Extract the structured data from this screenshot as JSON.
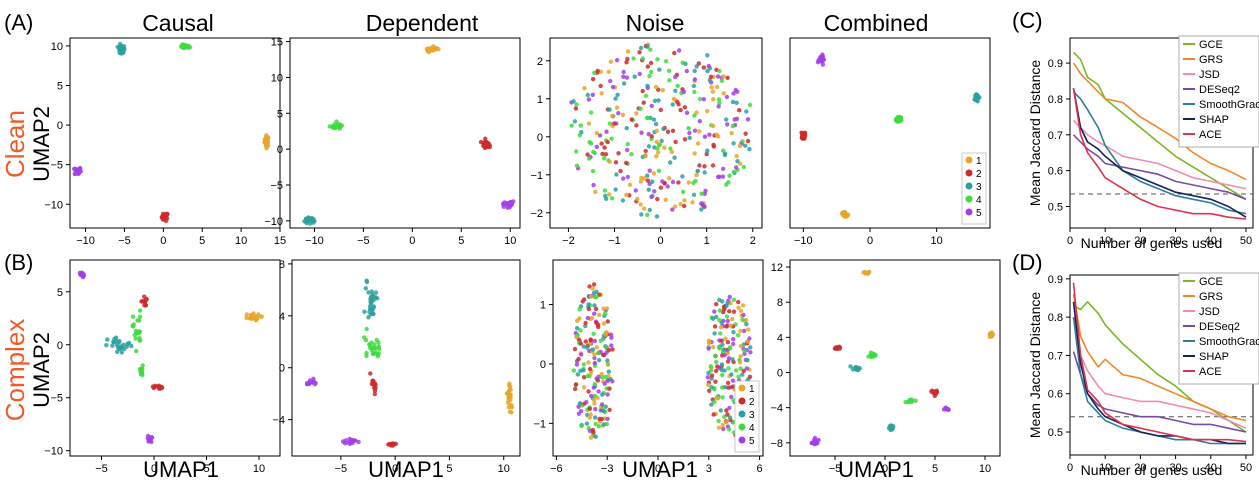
{
  "figure": {
    "panel_labels": [
      "(A)",
      "(B)",
      "(C)",
      "(D)"
    ],
    "column_titles": [
      "Causal",
      "Dependent",
      "Noise",
      "Combined"
    ],
    "row_labels": [
      {
        "name": "Clean",
        "ylabel": "UMAP2",
        "color": "#f05a28"
      },
      {
        "name": "Complex",
        "ylabel": "UMAP2",
        "color": "#f05a28"
      }
    ],
    "xlabel": "UMAP1"
  },
  "cluster_colors": {
    "1": "#e9a52a",
    "2": "#cc2a2a",
    "3": "#2aa0a0",
    "4": "#3ddc3d",
    "5": "#a53ee8"
  },
  "chart_data": [
    {
      "id": "A-causal",
      "type": "scatter",
      "panel": "A",
      "title": "Causal",
      "xlim": [
        -12,
        15
      ],
      "ylim": [
        -13,
        11
      ],
      "xticks": [
        -10,
        -5,
        0,
        5,
        10,
        15
      ],
      "yticks": [
        -10,
        -5,
        0,
        5,
        10
      ],
      "legend": null,
      "clusters": [
        {
          "label": "1",
          "center": [
            13.3,
            -2.0
          ],
          "spread": [
            0.3,
            0.7
          ],
          "n": 26
        },
        {
          "label": "2",
          "center": [
            0.2,
            -11.6
          ],
          "spread": [
            0.4,
            0.5
          ],
          "n": 26
        },
        {
          "label": "3",
          "center": [
            -5.4,
            9.5
          ],
          "spread": [
            0.45,
            0.6
          ],
          "n": 26
        },
        {
          "label": "4",
          "center": [
            2.8,
            9.9
          ],
          "spread": [
            0.6,
            0.25
          ],
          "n": 26
        },
        {
          "label": "5",
          "center": [
            -11.0,
            -5.8
          ],
          "spread": [
            0.4,
            0.5
          ],
          "n": 26
        }
      ]
    },
    {
      "id": "A-dependent",
      "type": "scatter",
      "panel": "A",
      "title": "Dependent",
      "xlim": [
        -12.5,
        11
      ],
      "ylim": [
        -11,
        15.5
      ],
      "xticks": [
        -10,
        -5,
        0,
        5,
        10
      ],
      "yticks": [
        -10,
        -5,
        0,
        5,
        10,
        15
      ],
      "legend": null,
      "clusters": [
        {
          "label": "1",
          "center": [
            2.0,
            13.9
          ],
          "spread": [
            0.5,
            0.3
          ],
          "n": 26
        },
        {
          "label": "2",
          "center": [
            7.5,
            0.7
          ],
          "spread": [
            0.4,
            0.4
          ],
          "n": 26
        },
        {
          "label": "3",
          "center": [
            -10.5,
            -9.9
          ],
          "spread": [
            0.5,
            0.4
          ],
          "n": 26
        },
        {
          "label": "4",
          "center": [
            -7.8,
            3.2
          ],
          "spread": [
            0.6,
            0.4
          ],
          "n": 26
        },
        {
          "label": "5",
          "center": [
            9.8,
            -7.7
          ],
          "spread": [
            0.5,
            0.4
          ],
          "n": 26
        }
      ]
    },
    {
      "id": "A-noise",
      "type": "scatter",
      "panel": "A",
      "title": "Noise",
      "xlim": [
        -2.4,
        2.2
      ],
      "ylim": [
        -2.4,
        2.6
      ],
      "xticks": [
        -2,
        -1,
        0,
        1,
        2
      ],
      "yticks": [
        -2,
        -1,
        0,
        1,
        2
      ],
      "legend": null,
      "cloud": {
        "shape": "disc",
        "center": [
          0.0,
          0.15
        ],
        "radius": [
          2.05,
          2.3
        ],
        "n_per_cluster": 70
      }
    },
    {
      "id": "A-combined",
      "type": "scatter",
      "panel": "A",
      "title": "Combined",
      "xlim": [
        -12,
        18
      ],
      "ylim": [
        -13.5,
        10
      ],
      "xticks": [
        -10,
        0,
        10
      ],
      "yticks": [],
      "legend": {
        "entries": [
          "1",
          "2",
          "3",
          "4",
          "5"
        ],
        "position": "bottom-right"
      },
      "clusters": [
        {
          "label": "1",
          "center": [
            -3.8,
            -11.8
          ],
          "spread": [
            0.4,
            0.4
          ],
          "n": 26
        },
        {
          "label": "2",
          "center": [
            -10.0,
            -2.1
          ],
          "spread": [
            0.3,
            0.5
          ],
          "n": 26
        },
        {
          "label": "3",
          "center": [
            16.0,
            2.7
          ],
          "spread": [
            0.3,
            0.5
          ],
          "n": 26
        },
        {
          "label": "4",
          "center": [
            4.3,
            -0.1
          ],
          "spread": [
            0.4,
            0.35
          ],
          "n": 26
        },
        {
          "label": "5",
          "center": [
            -7.3,
            7.4
          ],
          "spread": [
            0.35,
            0.5
          ],
          "n": 26
        }
      ]
    },
    {
      "id": "C",
      "type": "line",
      "panel": "C",
      "xlabel": "Number of genes used",
      "ylabel": "Mean Jaccard Distance",
      "xlim": [
        0,
        52
      ],
      "ylim": [
        0.44,
        0.97
      ],
      "xticks": [
        0,
        10,
        20,
        30,
        40,
        50
      ],
      "yticks": [
        0.5,
        0.6,
        0.7,
        0.8,
        0.9
      ],
      "hline": {
        "y": 0.535,
        "style": "dashed",
        "color": "#555555"
      },
      "legend_position": "top-right",
      "x": [
        1,
        3,
        5,
        8,
        10,
        15,
        20,
        25,
        30,
        35,
        40,
        45,
        50
      ],
      "series": [
        {
          "name": "GCE",
          "color": "#7ab728",
          "values": [
            0.93,
            0.91,
            0.86,
            0.84,
            0.8,
            0.76,
            0.72,
            0.68,
            0.64,
            0.61,
            0.58,
            0.55,
            0.52
          ]
        },
        {
          "name": "GRS",
          "color": "#f0882a",
          "values": [
            0.9,
            0.87,
            0.85,
            0.82,
            0.8,
            0.79,
            0.75,
            0.72,
            0.69,
            0.65,
            0.62,
            0.6,
            0.575
          ]
        },
        {
          "name": "JSD",
          "color": "#f08cb0",
          "values": [
            0.74,
            0.72,
            0.7,
            0.68,
            0.67,
            0.64,
            0.63,
            0.62,
            0.6,
            0.58,
            0.57,
            0.56,
            0.55
          ]
        },
        {
          "name": "DESeq2",
          "color": "#7a4aa0",
          "values": [
            0.7,
            0.68,
            0.66,
            0.64,
            0.62,
            0.61,
            0.6,
            0.59,
            0.57,
            0.56,
            0.55,
            0.54,
            0.52
          ]
        },
        {
          "name": "SmoothGrad",
          "color": "#2f7d9a",
          "values": [
            0.82,
            0.8,
            0.77,
            0.72,
            0.67,
            0.6,
            0.57,
            0.55,
            0.53,
            0.52,
            0.51,
            0.49,
            0.48
          ]
        },
        {
          "name": "SHAP",
          "color": "#16225a",
          "values": [
            0.83,
            0.72,
            0.68,
            0.66,
            0.64,
            0.6,
            0.58,
            0.56,
            0.54,
            0.53,
            0.52,
            0.5,
            0.47
          ]
        },
        {
          "name": "ACE",
          "color": "#e0334a",
          "values": [
            0.83,
            0.7,
            0.65,
            0.61,
            0.58,
            0.55,
            0.52,
            0.5,
            0.49,
            0.48,
            0.48,
            0.47,
            0.465
          ]
        }
      ]
    },
    {
      "id": "B-causal",
      "type": "scatter",
      "panel": "B",
      "xlabel": "UMAP1",
      "ylabel": "UMAP2",
      "xlim": [
        -8,
        12
      ],
      "ylim": [
        -10.5,
        8
      ],
      "xticks": [
        -5,
        0,
        5,
        10
      ],
      "yticks": [
        -10,
        -5,
        0,
        5
      ],
      "legend": null,
      "clusters": [
        {
          "label": "1",
          "center": [
            9.2,
            2.6
          ],
          "spread": [
            0.9,
            0.3
          ],
          "n": 20
        },
        {
          "label": "5",
          "center": [
            -6.9,
            6.6
          ],
          "spread": [
            0.25,
            0.25
          ],
          "n": 14
        },
        {
          "label": "5",
          "center": [
            -0.4,
            -8.9
          ],
          "spread": [
            0.2,
            0.3
          ],
          "n": 14
        },
        {
          "label": "2",
          "center": [
            -0.9,
            4.1
          ],
          "spread": [
            0.3,
            0.5
          ],
          "n": 12
        },
        {
          "label": "2",
          "center": [
            0.3,
            -4.0
          ],
          "spread": [
            0.5,
            0.2
          ],
          "n": 12
        },
        {
          "label": "4",
          "center": [
            -1.6,
            1.4
          ],
          "spread": [
            0.4,
            1.8
          ],
          "n": 22
        },
        {
          "label": "4",
          "center": [
            -1.2,
            -2.6
          ],
          "spread": [
            0.3,
            0.6
          ],
          "n": 12
        },
        {
          "label": "3",
          "center": [
            -3.2,
            -0.1
          ],
          "spread": [
            1.2,
            0.8
          ],
          "n": 24
        }
      ]
    },
    {
      "id": "B-dependent",
      "type": "scatter",
      "panel": "B",
      "xlabel": "UMAP1",
      "xlim": [
        -9.5,
        11.5
      ],
      "ylim": [
        -6.8,
        8.3
      ],
      "xticks": [
        -5,
        0,
        5,
        10
      ],
      "yticks": [
        -4,
        0,
        4,
        8
      ],
      "legend": null,
      "clusters": [
        {
          "label": "3",
          "center": [
            -2.2,
            5.2
          ],
          "spread": [
            0.5,
            1.6
          ],
          "n": 30
        },
        {
          "label": "4",
          "center": [
            -2.0,
            1.4
          ],
          "spread": [
            0.8,
            0.9
          ],
          "n": 26
        },
        {
          "label": "2",
          "center": [
            -2.0,
            -1.3
          ],
          "spread": [
            0.25,
            0.8
          ],
          "n": 14
        },
        {
          "label": "5",
          "center": [
            -7.8,
            -1.1
          ],
          "spread": [
            0.5,
            0.2
          ],
          "n": 12
        },
        {
          "label": "5",
          "center": [
            -4.2,
            -5.7
          ],
          "spread": [
            0.7,
            0.3
          ],
          "n": 14
        },
        {
          "label": "2",
          "center": [
            -0.3,
            -5.9
          ],
          "spread": [
            0.4,
            0.15
          ],
          "n": 12
        },
        {
          "label": "1",
          "center": [
            10.5,
            -2.2
          ],
          "spread": [
            0.25,
            1.2
          ],
          "n": 24
        }
      ]
    },
    {
      "id": "B-noise",
      "type": "scatter",
      "panel": "B",
      "xlabel": "UMAP1",
      "xlim": [
        -6.2,
        6.2
      ],
      "ylim": [
        -1.55,
        1.75
      ],
      "xticks": [
        -6,
        -3,
        0,
        3,
        6
      ],
      "yticks": [
        -1,
        0,
        1
      ],
      "legend": {
        "entries": [
          "1",
          "2",
          "3",
          "4",
          "5"
        ],
        "position": "bottom-right"
      },
      "blobs": [
        {
          "center": [
            -3.8,
            0.0
          ],
          "radius": [
            1.5,
            1.35
          ],
          "n_per_cluster": 40
        },
        {
          "center": [
            4.2,
            0.0
          ],
          "radius": [
            1.6,
            1.3
          ],
          "n_per_cluster": 40
        }
      ]
    },
    {
      "id": "B-combined",
      "type": "scatter",
      "panel": "B",
      "xlabel": "UMAP1",
      "xlim": [
        -9.5,
        11.5
      ],
      "ylim": [
        -9.5,
        12.8
      ],
      "xticks": [
        -5,
        0,
        5,
        10
      ],
      "yticks": [
        -8,
        -4,
        0,
        4,
        8,
        12
      ],
      "legend": null,
      "clusters": [
        {
          "label": "1",
          "center": [
            -1.8,
            11.3
          ],
          "spread": [
            0.3,
            0.15
          ],
          "n": 12
        },
        {
          "label": "1",
          "center": [
            10.6,
            4.3
          ],
          "spread": [
            0.2,
            0.3
          ],
          "n": 12
        },
        {
          "label": "2",
          "center": [
            -4.8,
            2.8
          ],
          "spread": [
            0.4,
            0.15
          ],
          "n": 12
        },
        {
          "label": "2",
          "center": [
            4.9,
            -2.2
          ],
          "spread": [
            0.3,
            0.5
          ],
          "n": 12
        },
        {
          "label": "3",
          "center": [
            -2.9,
            0.5
          ],
          "spread": [
            0.6,
            0.3
          ],
          "n": 14
        },
        {
          "label": "3",
          "center": [
            0.6,
            -6.3
          ],
          "spread": [
            0.3,
            0.5
          ],
          "n": 12
        },
        {
          "label": "4",
          "center": [
            -1.3,
            2.0
          ],
          "spread": [
            0.4,
            0.3
          ],
          "n": 14
        },
        {
          "label": "4",
          "center": [
            2.5,
            -3.3
          ],
          "spread": [
            0.5,
            0.2
          ],
          "n": 12
        },
        {
          "label": "5",
          "center": [
            -7.0,
            -8.0
          ],
          "spread": [
            0.3,
            0.4
          ],
          "n": 12
        },
        {
          "label": "5",
          "center": [
            6.1,
            -4.2
          ],
          "spread": [
            0.3,
            0.2
          ],
          "n": 10
        }
      ]
    },
    {
      "id": "D",
      "type": "line",
      "panel": "D",
      "xlabel": "Number of genes used",
      "ylabel": "Mean Jaccard Distance",
      "xlim": [
        0,
        52
      ],
      "ylim": [
        0.44,
        0.91
      ],
      "xticks": [
        0,
        10,
        20,
        30,
        40,
        50
      ],
      "yticks": [
        0.5,
        0.6,
        0.7,
        0.8,
        0.9
      ],
      "hline": {
        "y": 0.54,
        "style": "dashed",
        "color": "#555555"
      },
      "legend_position": "top-right",
      "x": [
        1,
        3,
        5,
        8,
        10,
        15,
        20,
        25,
        30,
        35,
        40,
        45,
        50
      ],
      "series": [
        {
          "name": "GCE",
          "color": "#7ab728",
          "values": [
            0.83,
            0.82,
            0.84,
            0.81,
            0.78,
            0.73,
            0.69,
            0.65,
            0.62,
            0.58,
            0.56,
            0.53,
            0.5
          ]
        },
        {
          "name": "GRS",
          "color": "#f0882a",
          "values": [
            0.86,
            0.75,
            0.71,
            0.67,
            0.69,
            0.65,
            0.64,
            0.62,
            0.6,
            0.58,
            0.56,
            0.54,
            0.53
          ]
        },
        {
          "name": "JSD",
          "color": "#f08cb0",
          "values": [
            0.8,
            0.7,
            0.66,
            0.62,
            0.6,
            0.59,
            0.58,
            0.58,
            0.57,
            0.56,
            0.55,
            0.53,
            0.51
          ]
        },
        {
          "name": "DESeq2",
          "color": "#7a4aa0",
          "values": [
            0.71,
            0.65,
            0.6,
            0.57,
            0.56,
            0.55,
            0.54,
            0.54,
            0.53,
            0.52,
            0.52,
            0.51,
            0.5
          ]
        },
        {
          "name": "SmoothGrad",
          "color": "#2f7d9a",
          "values": [
            0.8,
            0.65,
            0.58,
            0.55,
            0.53,
            0.51,
            0.5,
            0.49,
            0.48,
            0.48,
            0.47,
            0.47,
            0.47
          ]
        },
        {
          "name": "SHAP",
          "color": "#16225a",
          "values": [
            0.84,
            0.68,
            0.6,
            0.56,
            0.54,
            0.52,
            0.5,
            0.49,
            0.49,
            0.48,
            0.48,
            0.47,
            0.47
          ]
        },
        {
          "name": "ACE",
          "color": "#e0334a",
          "values": [
            0.89,
            0.7,
            0.61,
            0.58,
            0.55,
            0.52,
            0.51,
            0.5,
            0.49,
            0.48,
            0.48,
            0.48,
            0.475
          ]
        }
      ]
    }
  ]
}
